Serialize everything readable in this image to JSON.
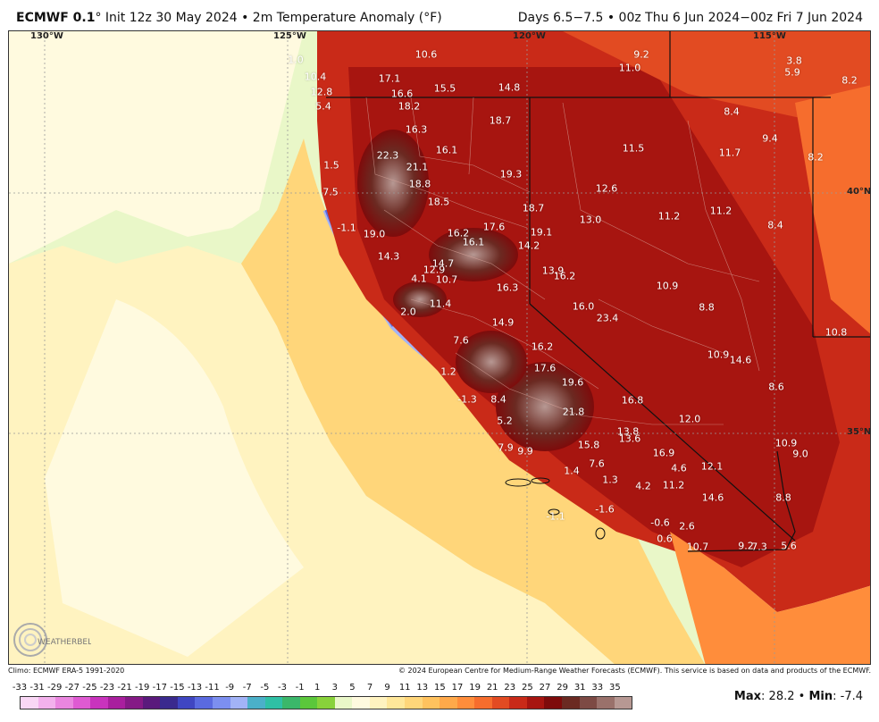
{
  "header": {
    "model": "ECMWF 0.1",
    "deg": "°",
    "init": "Init 12z 30 May 2024 • 2m Temperature Anomaly (°F)",
    "valid": "Days 6.5−7.5 • 00z Thu 6 Jun 2024−00z Fri 7 Jun 2024"
  },
  "map": {
    "grid_labels": {
      "lon130": "130°W",
      "lon125": "125°W",
      "lon120": "120°W",
      "lon115": "115°W",
      "lat40": "40°N",
      "lat35": "35°N"
    },
    "anomaly_labels": [
      "1.0",
      "10.6",
      "9.2",
      "11.0",
      "3.8",
      "5.9",
      "8.2",
      "10.4",
      "17.1",
      "15.5",
      "14.8",
      "12.8",
      "16.6",
      "5.4",
      "18.2",
      "8.4",
      "18.7",
      "16.3",
      "9.4",
      "16.1",
      "11.5",
      "11.7",
      "8.2",
      "22.3",
      "21.1",
      "1.5",
      "19.3",
      "18.8",
      "12.6",
      "7.5",
      "18.5",
      "18.7",
      "13.0",
      "11.2",
      "11.2",
      "8.4",
      "-1.1",
      "19.0",
      "16.2",
      "17.6",
      "16.1",
      "19.1",
      "14.2",
      "14.3",
      "14.7",
      "12.9",
      "13.9",
      "16.2",
      "4.1",
      "10.7",
      "16.3",
      "10.9",
      "11.4",
      "16.0",
      "2.0",
      "8.8",
      "23.4",
      "14.9",
      "7.6",
      "16.2",
      "10.9",
      "14.6",
      "10.8",
      "17.6",
      "1.2",
      "19.6",
      "8.6",
      "-1.3",
      "8.4",
      "16.8",
      "21.8",
      "12.0",
      "5.2",
      "13.8",
      "13.6",
      "15.8",
      "10.9",
      "7.9",
      "9.9",
      "16.9",
      "9.0",
      "7.6",
      "4.6",
      "12.1",
      "1.4",
      "1.3",
      "4.2",
      "11.2",
      "14.6",
      "8.8",
      "-1.6",
      "-1.1",
      "-0.6",
      "2.6",
      "0.6",
      "10.7",
      "9.2",
      "7.3",
      "5.6"
    ]
  },
  "footer": {
    "climo": "Climo: ECMWF ERA-5 1991-2020",
    "copyright": "© 2024 European Centre for Medium-Range Weather Forecasts (ECMWF). This service is based on data and products of the ECMWF.",
    "logo": "WEATHERBELL"
  },
  "colorbar": {
    "ticks": [
      "-33",
      "-31",
      "-29",
      "-27",
      "-25",
      "-23",
      "-21",
      "-19",
      "-17",
      "-15",
      "-13",
      "-11",
      "-9",
      "-7",
      "-5",
      "-3",
      "-1",
      "1",
      "3",
      "5",
      "7",
      "9",
      "11",
      "13",
      "15",
      "17",
      "19",
      "21",
      "23",
      "25",
      "27",
      "29",
      "31",
      "33",
      "35"
    ],
    "colors": [
      "#f9d7f5",
      "#f3b1ec",
      "#ea86df",
      "#df5ad2",
      "#c933bd",
      "#a91f9e",
      "#851a86",
      "#5a1a7c",
      "#3a2a8e",
      "#3f46c2",
      "#5a6ae0",
      "#7c8ff0",
      "#a2b3f7",
      "#4bb0c9",
      "#2fc0a5",
      "#3bb76a",
      "#5bc73b",
      "#88d23a",
      "#e9f7c8",
      "#fffadf",
      "#fff3c0",
      "#ffe79a",
      "#ffd67a",
      "#ffc25e",
      "#ffa94a",
      "#ff8d3b",
      "#f66d2d",
      "#e24b22",
      "#c92a18",
      "#a71510",
      "#7e0b0b",
      "#6b2a22",
      "#7d4a44",
      "#9a716b",
      "#b79893"
    ]
  },
  "stats": {
    "max_label": "Max",
    "max_value": "28.2",
    "min_label": "Min",
    "min_value": "-7.4",
    "sep": "•"
  }
}
